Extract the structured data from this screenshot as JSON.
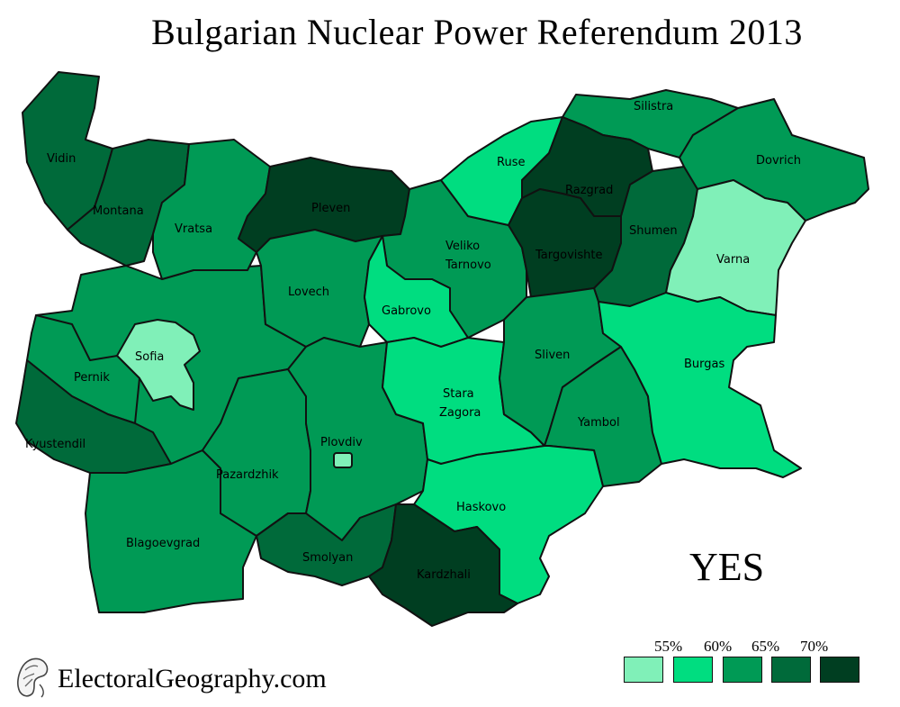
{
  "title": "Bulgarian Nuclear Power Referendum 2013",
  "answer_label": "YES",
  "site": "ElectoralGeography.com",
  "colors": {
    "c1": "#80f0b8",
    "c2": "#00dd80",
    "c3": "#009a55",
    "c4": "#006a3a",
    "c5": "#003e21",
    "border": "#111111"
  },
  "legend": {
    "thresholds": [
      "55%",
      "60%",
      "65%",
      "70%"
    ],
    "swatches": [
      "c1",
      "c2",
      "c3",
      "c4",
      "c5"
    ]
  },
  "regions": [
    {
      "name": "Vidin",
      "color": "c4"
    },
    {
      "name": "Montana",
      "color": "c4"
    },
    {
      "name": "Vratsa",
      "color": "c3"
    },
    {
      "name": "Pleven",
      "color": "c5"
    },
    {
      "name": "Lovech",
      "color": "c3"
    },
    {
      "name": "Veliko Tarnovo",
      "color": "c3"
    },
    {
      "name": "Ruse",
      "color": "c2"
    },
    {
      "name": "Silistra",
      "color": "c3"
    },
    {
      "name": "Razgrad",
      "color": "c5"
    },
    {
      "name": "Targovishte",
      "color": "c5"
    },
    {
      "name": "Shumen",
      "color": "c4"
    },
    {
      "name": "Dovrich",
      "color": "c3"
    },
    {
      "name": "Varna",
      "color": "c1"
    },
    {
      "name": "Gabrovo",
      "color": "c2"
    },
    {
      "name": "Sofia",
      "color": "c1"
    },
    {
      "name": "Pernik",
      "color": "c3"
    },
    {
      "name": "Kyustendil",
      "color": "c4"
    },
    {
      "name": "Blagoevgrad",
      "color": "c3"
    },
    {
      "name": "Pazardzhik",
      "color": "c3"
    },
    {
      "name": "Plovdiv",
      "color": "c3"
    },
    {
      "name": "Stara Zagora",
      "color": "c2"
    },
    {
      "name": "Sliven",
      "color": "c3"
    },
    {
      "name": "Yambol",
      "color": "c3"
    },
    {
      "name": "Burgas",
      "color": "c2"
    },
    {
      "name": "Haskovo",
      "color": "c2"
    },
    {
      "name": "Smolyan",
      "color": "c4"
    },
    {
      "name": "Kardzhali",
      "color": "c5"
    }
  ],
  "sofia_province_color": "c3",
  "plovdiv_city_color": "c1"
}
